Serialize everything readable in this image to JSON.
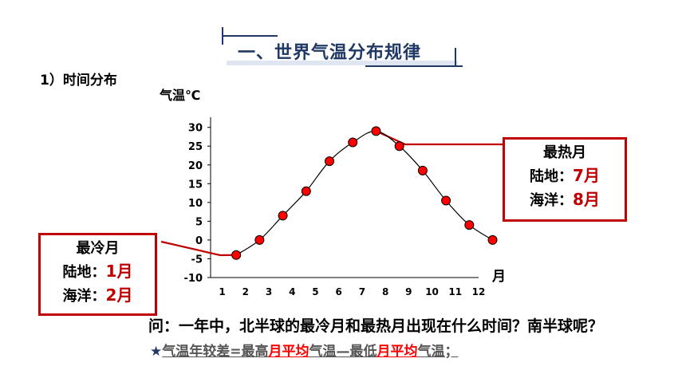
{
  "title": "一、世界气温分布规律",
  "section": "1）时间分布",
  "question": "问：一年中，北半球的最冷月和最热月出现在什么时间？南半球呢？",
  "formula": {
    "star": "★",
    "p1": "气温年较差=最高",
    "p2": "月平均",
    "p3": "气温—最低",
    "p4": "月平均",
    "p5": "气温；"
  },
  "hottest_box": {
    "title": "最热月",
    "land_label": "陆地：",
    "land_value": "7月",
    "ocean_label": "海洋：",
    "ocean_value": "8月"
  },
  "coldest_box": {
    "title": "最冷月",
    "land_label": "陆地：",
    "land_value": "1月",
    "ocean_label": "海洋：",
    "ocean_value": "2月"
  },
  "colors": {
    "accent": "#c00000",
    "title": "#1f3864",
    "point": "#ff0000"
  },
  "chart_data": {
    "type": "line",
    "ylabel": "气温℃",
    "xlabel": "月",
    "x_ticks": [
      1,
      2,
      3,
      4,
      5,
      6,
      7,
      8,
      9,
      10,
      11,
      12
    ],
    "y_ticks": [
      30,
      25,
      20,
      15,
      10,
      5,
      0,
      -5,
      -10
    ],
    "xlim": [
      0.5,
      12
    ],
    "ylim": [
      -10,
      31
    ],
    "series": [
      {
        "x": [
          1.6,
          2.6,
          3.6,
          4.6,
          5.6,
          6.6,
          7.6,
          8.6,
          9.6,
          10.6,
          11.6,
          12.6
        ],
        "values": [
          -4,
          0,
          6.5,
          13,
          21,
          26,
          29,
          25,
          18.5,
          10.5,
          4,
          0
        ]
      }
    ],
    "grid": false
  }
}
